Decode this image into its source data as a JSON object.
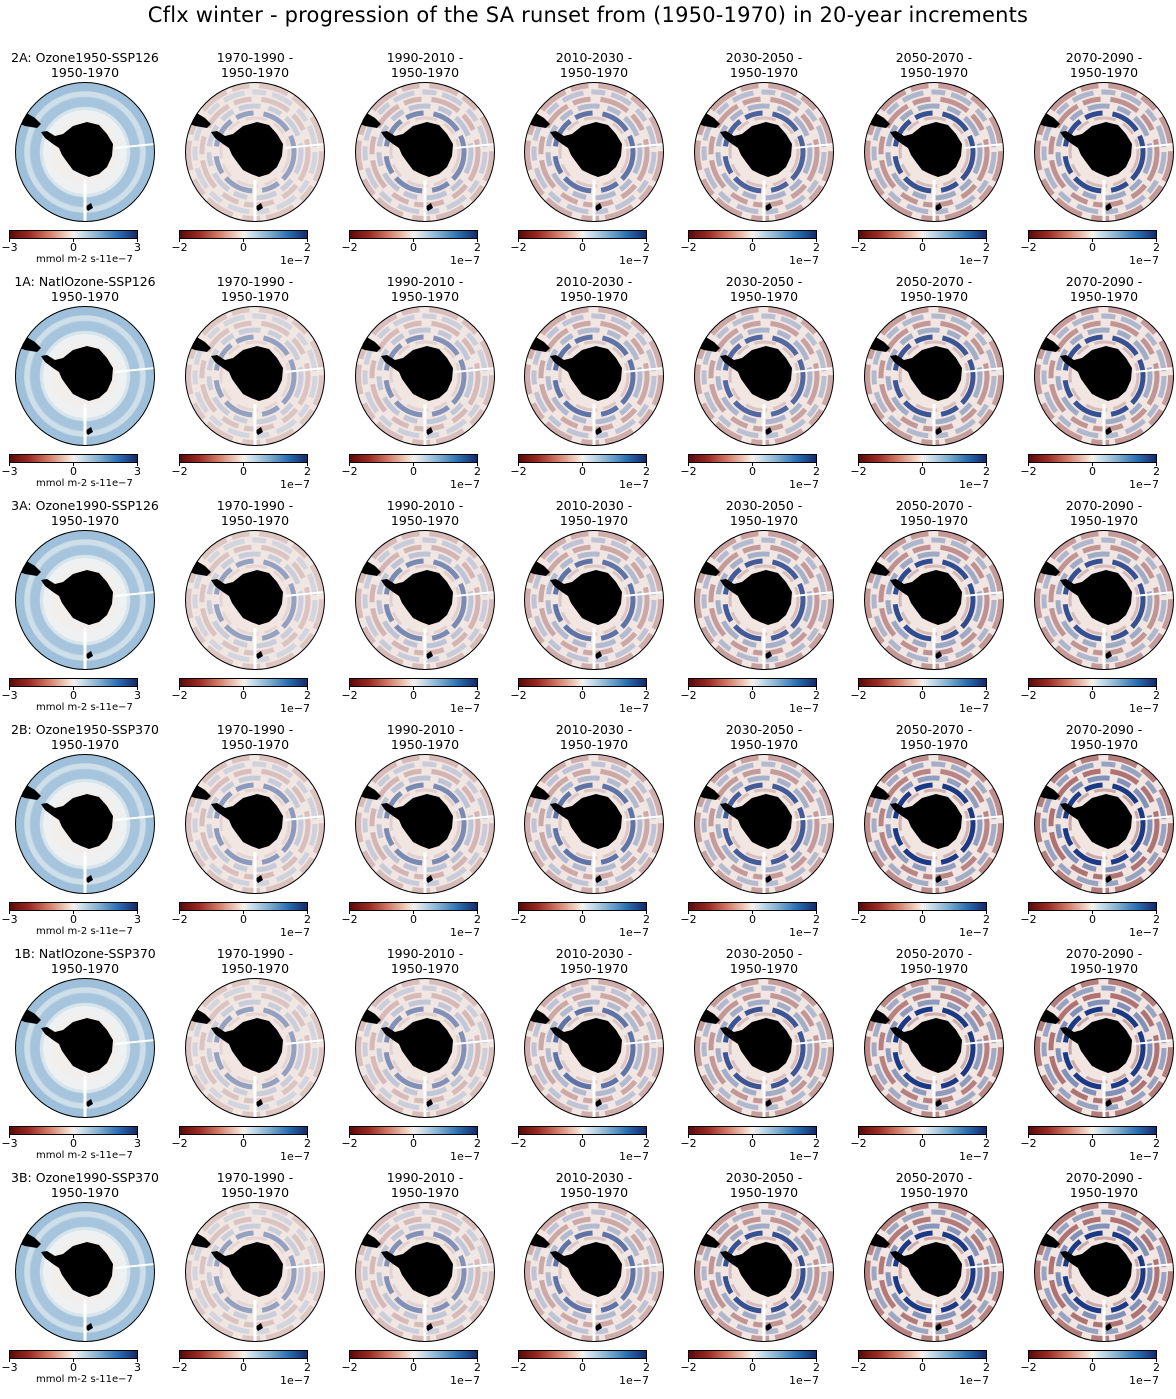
{
  "figure": {
    "title": "Cflx winter - progression of the SA runset from (1950-1970) in 20-year increments",
    "unit_label": "mmol m-2 s-1",
    "exponent_label": "1e−7",
    "first_col_ticks": [
      "−3",
      "0",
      "3"
    ],
    "other_col_ticks": [
      "−2",
      "0",
      "2"
    ],
    "colors": {
      "neg": "#7a1515",
      "mid": "#f4f1ef",
      "pos": "#1a3a85",
      "land": "#000000"
    }
  },
  "rows": [
    {
      "run": "2A: Ozone1950-SSP126",
      "panels": [
        {
          "line1": "2A: Ozone1950-SSP126",
          "line2": "1950-1970",
          "intensity": 0
        },
        {
          "line1": "1970-1990 -",
          "line2": "1950-1970",
          "intensity": 0.35
        },
        {
          "line1": "1990-2010 -",
          "line2": "1950-1970",
          "intensity": 0.45
        },
        {
          "line1": "2010-2030 -",
          "line2": "1950-1970",
          "intensity": 0.55
        },
        {
          "line1": "2030-2050 -",
          "line2": "1950-1970",
          "intensity": 0.62
        },
        {
          "line1": "2050-2070 -",
          "line2": "1950-1970",
          "intensity": 0.7
        },
        {
          "line1": "2070-2090 -",
          "line2": "1950-1970",
          "intensity": 0.72
        }
      ]
    },
    {
      "run": "1A: NatlOzone-SSP126",
      "panels": [
        {
          "line1": "1A: NatlOzone-SSP126",
          "line2": "1950-1970",
          "intensity": 0
        },
        {
          "line1": "1970-1990 -",
          "line2": "1950-1970",
          "intensity": 0.35
        },
        {
          "line1": "1990-2010 -",
          "line2": "1950-1970",
          "intensity": 0.42
        },
        {
          "line1": "2010-2030 -",
          "line2": "1950-1970",
          "intensity": 0.55
        },
        {
          "line1": "2030-2050 -",
          "line2": "1950-1970",
          "intensity": 0.6
        },
        {
          "line1": "2050-2070 -",
          "line2": "1950-1970",
          "intensity": 0.68
        },
        {
          "line1": "2070-2090 -",
          "line2": "1950-1970",
          "intensity": 0.7
        }
      ]
    },
    {
      "run": "3A: Ozone1990-SSP126",
      "panels": [
        {
          "line1": "3A: Ozone1990-SSP126",
          "line2": "1950-1970",
          "intensity": 0
        },
        {
          "line1": "1970-1990 -",
          "line2": "1950-1970",
          "intensity": 0.35
        },
        {
          "line1": "1990-2010 -",
          "line2": "1950-1970",
          "intensity": 0.45
        },
        {
          "line1": "2010-2030 -",
          "line2": "1950-1970",
          "intensity": 0.55
        },
        {
          "line1": "2030-2050 -",
          "line2": "1950-1970",
          "intensity": 0.65
        },
        {
          "line1": "2050-2070 -",
          "line2": "1950-1970",
          "intensity": 0.72
        },
        {
          "line1": "2070-2090 -",
          "line2": "1950-1970",
          "intensity": 0.7
        }
      ]
    },
    {
      "run": "2B: Ozone1950-SSP370",
      "panels": [
        {
          "line1": "2B: Ozone1950-SSP370",
          "line2": "1950-1970",
          "intensity": 0
        },
        {
          "line1": "1970-1990 -",
          "line2": "1950-1970",
          "intensity": 0.38
        },
        {
          "line1": "1990-2010 -",
          "line2": "1950-1970",
          "intensity": 0.45
        },
        {
          "line1": "2010-2030 -",
          "line2": "1950-1970",
          "intensity": 0.55
        },
        {
          "line1": "2030-2050 -",
          "line2": "1950-1970",
          "intensity": 0.65
        },
        {
          "line1": "2050-2070 -",
          "line2": "1950-1970",
          "intensity": 0.82
        },
        {
          "line1": "2070-2090 -",
          "line2": "1950-1970",
          "intensity": 0.95
        }
      ]
    },
    {
      "run": "1B: NatlOzone-SSP370",
      "panels": [
        {
          "line1": "1B: NatlOzone-SSP370",
          "line2": "1950-1970",
          "intensity": 0
        },
        {
          "line1": "1970-1990 -",
          "line2": "1950-1970",
          "intensity": 0.35
        },
        {
          "line1": "1990-2010 -",
          "line2": "1950-1970",
          "intensity": 0.42
        },
        {
          "line1": "2010-2030 -",
          "line2": "1950-1970",
          "intensity": 0.55
        },
        {
          "line1": "2030-2050 -",
          "line2": "1950-1970",
          "intensity": 0.68
        },
        {
          "line1": "2050-2070 -",
          "line2": "1950-1970",
          "intensity": 0.85
        },
        {
          "line1": "2070-2090 -",
          "line2": "1950-1970",
          "intensity": 0.95
        }
      ]
    },
    {
      "run": "3B: Ozone1990-SSP370",
      "panels": [
        {
          "line1": "3B: Ozone1990-SSP370",
          "line2": "1950-1970",
          "intensity": 0
        },
        {
          "line1": "1970-1990 -",
          "line2": "1950-1970",
          "intensity": 0.35
        },
        {
          "line1": "1990-2010 -",
          "line2": "1950-1970",
          "intensity": 0.42
        },
        {
          "line1": "2010-2030 -",
          "line2": "1950-1970",
          "intensity": 0.55
        },
        {
          "line1": "2030-2050 -",
          "line2": "1950-1970",
          "intensity": 0.7
        },
        {
          "line1": "2050-2070 -",
          "line2": "1950-1970",
          "intensity": 0.9
        },
        {
          "line1": "2070-2090 -",
          "line2": "1950-1970",
          "intensity": 0.95
        }
      ]
    }
  ]
}
